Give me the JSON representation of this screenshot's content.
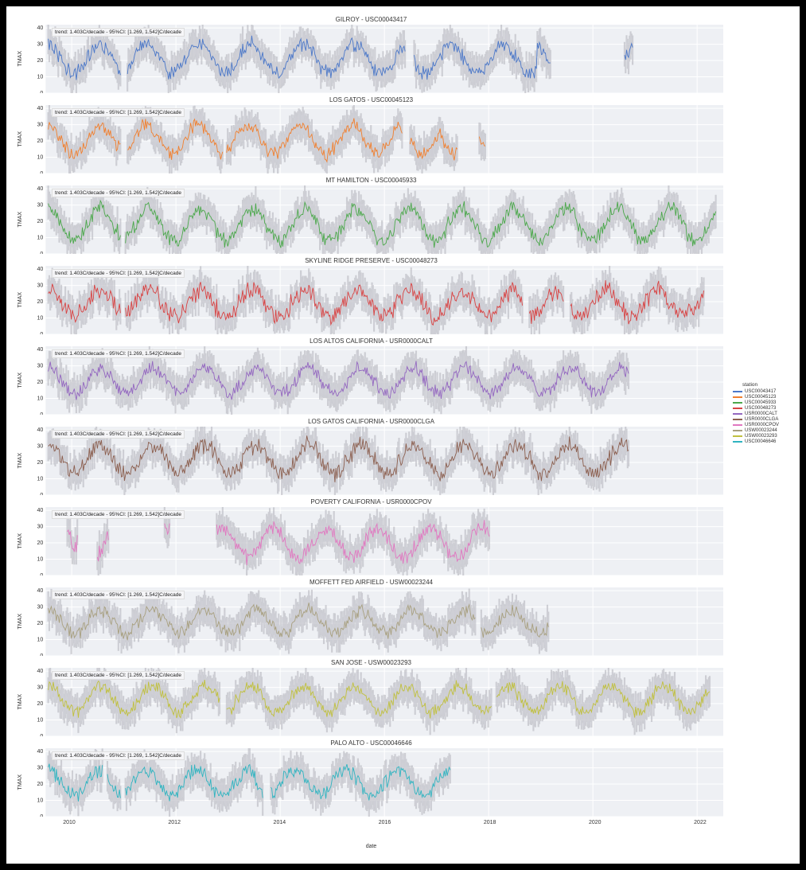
{
  "figure": {
    "background_color": "#ffffff",
    "panel_background": "#eef0f4",
    "grid_color": "#ffffff",
    "band_color": "#b0b0b8",
    "band_opacity": 0.55,
    "vline_color": "#d2d2da",
    "xaxis_label": "date",
    "yaxis_label": "TMAX",
    "annotation_text": "trend: 1.403C/decade - 95%CI: [1.269, 1.542]C/decade",
    "x_range": [
      2009.5,
      2022.5
    ],
    "x_ticks": [
      2010,
      2012,
      2014,
      2016,
      2018,
      2020,
      2022
    ],
    "y_range": [
      0,
      42
    ],
    "y_ticks": [
      0,
      10,
      20,
      30,
      40
    ],
    "title_fontsize": 8,
    "tick_fontsize": 7,
    "annotation_fontsize": 6.5,
    "line_width": 0.9
  },
  "legend": {
    "title": "station",
    "items": [
      {
        "label": "USC00043417",
        "color": "#4c78c8"
      },
      {
        "label": "USC00045123",
        "color": "#f08030"
      },
      {
        "label": "USC00045933",
        "color": "#4ca84c"
      },
      {
        "label": "USC00048273",
        "color": "#d84444"
      },
      {
        "label": "USR0000CALT",
        "color": "#9468c0"
      },
      {
        "label": "USR0000CLGA",
        "color": "#8c6050"
      },
      {
        "label": "USR0000CPOV",
        "color": "#e078c0"
      },
      {
        "label": "USW00023244",
        "color": "#a8a080"
      },
      {
        "label": "USW00023293",
        "color": "#c0c040"
      },
      {
        "label": "USC00046646",
        "color": "#30b4c0"
      }
    ]
  },
  "panels": [
    {
      "title": "GILROY - USC00043417",
      "color": "#4c78c8",
      "seasonal_amp": 9,
      "seasonal_mean": 21,
      "noise": 3.2,
      "gaps": [
        [
          2010.95,
          2011.06
        ],
        [
          2016.4,
          2016.55
        ],
        [
          2019.2,
          2020.6
        ]
      ]
    },
    {
      "title": "LOS GATOS - USC00045123",
      "color": "#f08030",
      "seasonal_amp": 9,
      "seasonal_mean": 21,
      "noise": 3.0,
      "gaps": [
        [
          2010.95,
          2011.06
        ],
        [
          2012.9,
          2012.97
        ],
        [
          2016.35,
          2016.48
        ],
        [
          2017.4,
          2017.8
        ],
        [
          2018.25,
          2018.5
        ],
        [
          2018.9,
          2022.5
        ]
      ]
    },
    {
      "title": "MT HAMILTON - USC00045933",
      "color": "#4ca84c",
      "seasonal_amp": 10,
      "seasonal_mean": 18,
      "noise": 3.3,
      "gaps": [
        [
          2010.95,
          2011.03
        ]
      ]
    },
    {
      "title": "SKYLINE RIDGE PRESERVE - USC00048273",
      "color": "#d84444",
      "seasonal_amp": 8,
      "seasonal_mean": 19,
      "noise": 4.2,
      "gaps": [
        [
          2010.95,
          2011.03
        ],
        [
          2018.65,
          2018.78
        ],
        [
          2019.45,
          2019.55
        ]
      ]
    },
    {
      "title": "LOS ALTOS CALIFORNIA - USR0000CALT",
      "color": "#9468c0",
      "seasonal_amp": 8,
      "seasonal_mean": 21,
      "noise": 3.0,
      "gaps": [
        [
          2020.7,
          2022.5
        ]
      ]
    },
    {
      "title": "LOS GATOS CALIFORNIA - USR0000CLGA",
      "color": "#8c6050",
      "seasonal_amp": 9,
      "seasonal_mean": 22,
      "noise": 3.6,
      "gaps": [
        [
          2020.7,
          2022.5
        ]
      ]
    },
    {
      "title": "POVERTY CALIFORNIA - USR0000CPOV",
      "color": "#e078c0",
      "seasonal_amp": 9,
      "seasonal_mean": 20,
      "noise": 3.4,
      "gaps": [
        [
          2009.5,
          2009.9
        ],
        [
          2010.12,
          2010.48
        ],
        [
          2010.72,
          2011.78
        ],
        [
          2011.88,
          2012.78
        ],
        [
          2020.7,
          2022.5
        ]
      ]
    },
    {
      "title": "MOFFETT FED AIRFIELD - USW00023244",
      "color": "#a8a080",
      "seasonal_amp": 7,
      "seasonal_mean": 21,
      "noise": 3.0,
      "gaps": [
        [
          2017.75,
          2017.85
        ],
        [
          2019.25,
          2022.5
        ]
      ]
    },
    {
      "title": "SAN JOSE - USW00023293",
      "color": "#c0c040",
      "seasonal_amp": 8,
      "seasonal_mean": 23,
      "noise": 2.8,
      "gaps": [
        [
          2012.85,
          2012.97
        ],
        [
          2018.05,
          2018.14
        ]
      ]
    },
    {
      "title": "PALO ALTO - USC00046646",
      "color": "#30b4c0",
      "seasonal_amp": 8,
      "seasonal_mean": 21,
      "noise": 3.2,
      "gaps": [
        [
          2010.6,
          2010.68
        ],
        [
          2010.95,
          2011.03
        ],
        [
          2013.68,
          2013.8
        ],
        [
          2017.55,
          2022.5
        ]
      ]
    }
  ]
}
